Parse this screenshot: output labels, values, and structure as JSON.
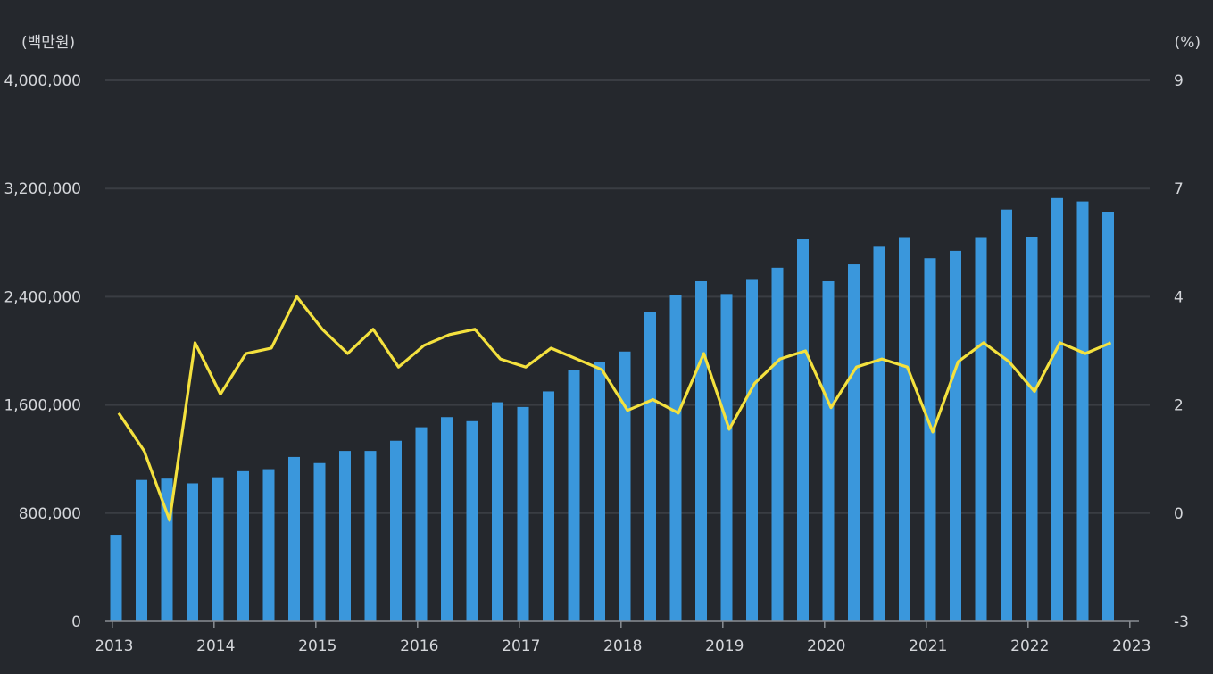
{
  "chart_data": {
    "type": "bar",
    "left_axis_unit": "(백만원)",
    "right_axis_unit": "(%)",
    "left_ylim": [
      0,
      4000000
    ],
    "right_ylim": [
      -3,
      9
    ],
    "left_ticks": [
      {
        "value": 0,
        "label": "0"
      },
      {
        "value": 800000,
        "label": "800,000"
      },
      {
        "value": 1600000,
        "label": "1,600,000"
      },
      {
        "value": 2400000,
        "label": "2,400,000"
      },
      {
        "value": 3200000,
        "label": "3,200,000"
      },
      {
        "value": 4000000,
        "label": "4,000,000"
      }
    ],
    "right_ticks": [
      {
        "value": -3,
        "label": "-3"
      },
      {
        "value": 0,
        "label": "0"
      },
      {
        "value": 2,
        "label": "2"
      },
      {
        "value": 4,
        "label": "4"
      },
      {
        "value": 7,
        "label": "7"
      },
      {
        "value": 9,
        "label": "9"
      }
    ],
    "x_ticks": [
      "2013",
      "2014",
      "2015",
      "2016",
      "2017",
      "2018",
      "2019",
      "2020",
      "2021",
      "2022",
      "2023"
    ],
    "grid": true,
    "series": [
      {
        "type": "bar",
        "axis": "left",
        "color": "#3a97dc",
        "values": [
          640000,
          1045000,
          1055000,
          1020000,
          1065000,
          1110000,
          1125000,
          1215000,
          1170000,
          1260000,
          1260000,
          1335000,
          1435000,
          1510000,
          1480000,
          1620000,
          1585000,
          1700000,
          1860000,
          1920000,
          1995000,
          2285000,
          2410000,
          2515000,
          2420000,
          2525000,
          2615000,
          2825000,
          2515000,
          2640000,
          2770000,
          2835000,
          2685000,
          2740000,
          2835000,
          3045000,
          2840000,
          3130000,
          3105000,
          3025000
        ]
      },
      {
        "type": "line",
        "axis": "right",
        "color": "#f4e13e",
        "values": [
          1.85,
          1.15,
          -0.2,
          3.15,
          2.2,
          2.95,
          3.05,
          4.0,
          3.4,
          2.95,
          3.4,
          2.7,
          3.1,
          3.3,
          3.4,
          2.85,
          2.7,
          3.05,
          2.85,
          2.65,
          1.9,
          2.1,
          1.85,
          2.95,
          1.55,
          2.4,
          2.85,
          3.0,
          1.95,
          2.7,
          2.85,
          2.7,
          1.5,
          2.8,
          3.15,
          2.8,
          2.25,
          3.15,
          2.95,
          3.15
        ]
      }
    ]
  }
}
